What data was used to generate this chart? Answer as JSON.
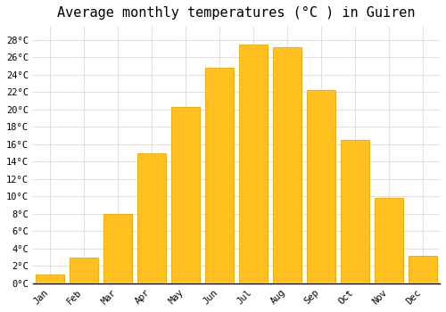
{
  "title": "Average monthly temperatures (°C ) in Guiren",
  "months": [
    "Jan",
    "Feb",
    "Mar",
    "Apr",
    "May",
    "Jun",
    "Jul",
    "Aug",
    "Sep",
    "Oct",
    "Nov",
    "Dec"
  ],
  "temperatures": [
    1,
    3,
    8,
    15,
    20.3,
    24.8,
    27.5,
    27.2,
    22.2,
    16.5,
    9.8,
    3.2
  ],
  "bar_color": "#FFC020",
  "bar_edge_color": "#E8A800",
  "background_color": "#FFFFFF",
  "grid_color": "#E0E0E0",
  "yticks": [
    0,
    2,
    4,
    6,
    8,
    10,
    12,
    14,
    16,
    18,
    20,
    22,
    24,
    26,
    28
  ],
  "ylim": [
    0,
    29.5
  ],
  "title_fontsize": 11,
  "tick_fontsize": 7.5,
  "bar_width": 0.85
}
